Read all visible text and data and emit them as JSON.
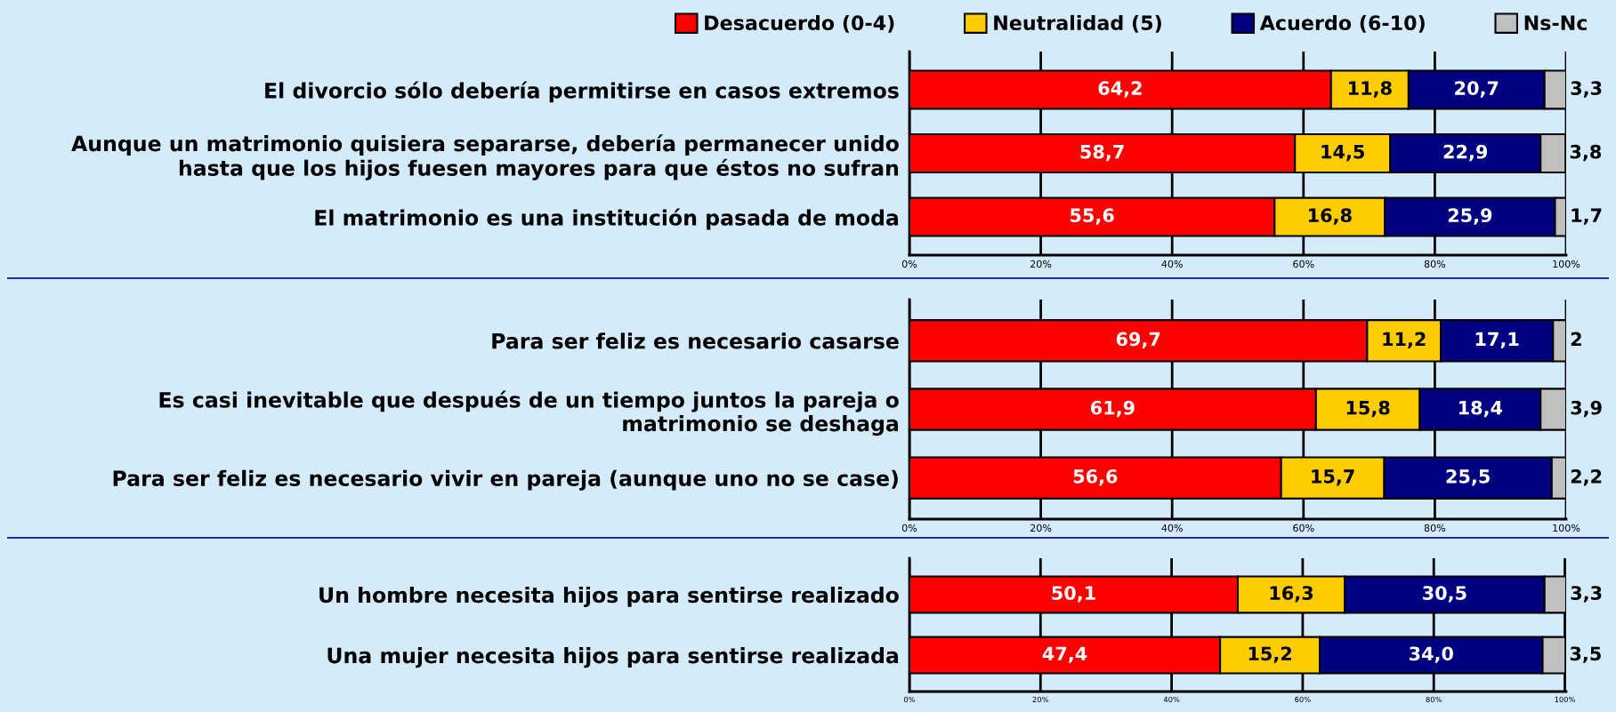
{
  "chart_data": [
    {
      "type": "bar",
      "orientation": "horizontal",
      "stacked": true,
      "legend": "top",
      "grid": "x",
      "categories": [
        "El divorcio sólo debería permitirse en casos extremos",
        "Aunque un matrimonio quisiera separarse, debería permanecer unido\nhasta que los hijos fuesen mayores para que éstos no sufran",
        "El matrimonio es una institución pasada de moda"
      ],
      "xlim": [
        0,
        100
      ],
      "xticks": [
        {
          "value": 0,
          "label": "0%"
        },
        {
          "value": 20,
          "label": "20%"
        },
        {
          "value": 40,
          "label": "40%"
        },
        {
          "value": 60,
          "label": "60%"
        },
        {
          "value": 80,
          "label": "80%"
        },
        {
          "value": 100,
          "label": "100%"
        }
      ],
      "series": [
        {
          "name": "Desacuerdo (0-4)",
          "color": "#ff0000",
          "values": [
            64.2,
            58.7,
            55.6
          ],
          "value_labels": [
            "64,2",
            "58,7",
            "55,6"
          ]
        },
        {
          "name": "Neutralidad (5)",
          "color": "#ffcc00",
          "values": [
            11.8,
            14.5,
            16.8
          ],
          "value_labels": [
            "11,8",
            "14,5",
            "16,8"
          ]
        },
        {
          "name": "Acuerdo (6-10)",
          "color": "#000080",
          "values": [
            20.7,
            22.9,
            25.9
          ],
          "value_labels": [
            "20,7",
            "22,9",
            "25,9"
          ]
        },
        {
          "name": "Ns-Nc",
          "color": "#c0c0c0",
          "values": [
            3.3,
            3.8,
            1.7
          ],
          "value_labels": [
            "3,3",
            "3,8",
            "1,7"
          ]
        }
      ]
    },
    {
      "type": "bar",
      "orientation": "horizontal",
      "stacked": true,
      "grid": "x",
      "categories": [
        "Para ser feliz es necesario casarse",
        "Es casi inevitable que después de un tiempo juntos la pareja o\nmatrimonio se deshaga",
        "Para ser feliz es necesario vivir en pareja (aunque uno no se case)"
      ],
      "xlim": [
        0,
        100
      ],
      "xticks": [
        {
          "value": 0,
          "label": "0%"
        },
        {
          "value": 20,
          "label": "20%"
        },
        {
          "value": 40,
          "label": "40%"
        },
        {
          "value": 60,
          "label": "60%"
        },
        {
          "value": 80,
          "label": "80%"
        },
        {
          "value": 100,
          "label": "100%"
        }
      ],
      "series": [
        {
          "color": "#ff0000",
          "values": [
            69.7,
            61.9,
            56.6
          ],
          "value_labels": [
            "69,7",
            "61,9",
            "56,6"
          ]
        },
        {
          "color": "#ffcc00",
          "values": [
            11.2,
            15.8,
            15.7
          ],
          "value_labels": [
            "11,2",
            "15,8",
            "15,7"
          ]
        },
        {
          "color": "#000080",
          "values": [
            17.1,
            18.4,
            25.5
          ],
          "value_labels": [
            "17,1",
            "18,4",
            "25,5"
          ]
        },
        {
          "color": "#c0c0c0",
          "values": [
            2,
            3.9,
            2.2
          ],
          "value_labels": [
            "2",
            "3,9",
            "2,2"
          ]
        }
      ]
    },
    {
      "type": "bar",
      "orientation": "horizontal",
      "stacked": true,
      "grid": "x",
      "categories": [
        "Un hombre necesita hijos para sentirse realizado",
        "Una mujer necesita hijos para sentirse realizada"
      ],
      "xlim": [
        0,
        100.2
      ],
      "xticks": [
        {
          "value": 0,
          "label": "0%"
        },
        {
          "value": 20,
          "label": "20%"
        },
        {
          "value": 40,
          "label": "40%"
        },
        {
          "value": 60,
          "label": "60%"
        },
        {
          "value": 80,
          "label": "80%"
        },
        {
          "value": 100,
          "label": "100%"
        }
      ],
      "series": [
        {
          "color": "#ff0000",
          "values": [
            50.1,
            47.4
          ],
          "value_labels": [
            "50,1",
            "47,4"
          ]
        },
        {
          "color": "#ffcc00",
          "values": [
            16.3,
            15.2
          ],
          "value_labels": [
            "16,3",
            "15,2"
          ]
        },
        {
          "color": "#000080",
          "values": [
            30.5,
            34.0
          ],
          "value_labels": [
            "30,5",
            "34,0"
          ]
        },
        {
          "color": "#c0c0c0",
          "values": [
            3.3,
            3.5
          ],
          "value_labels": [
            "3,3",
            "3,5"
          ]
        }
      ]
    }
  ]
}
